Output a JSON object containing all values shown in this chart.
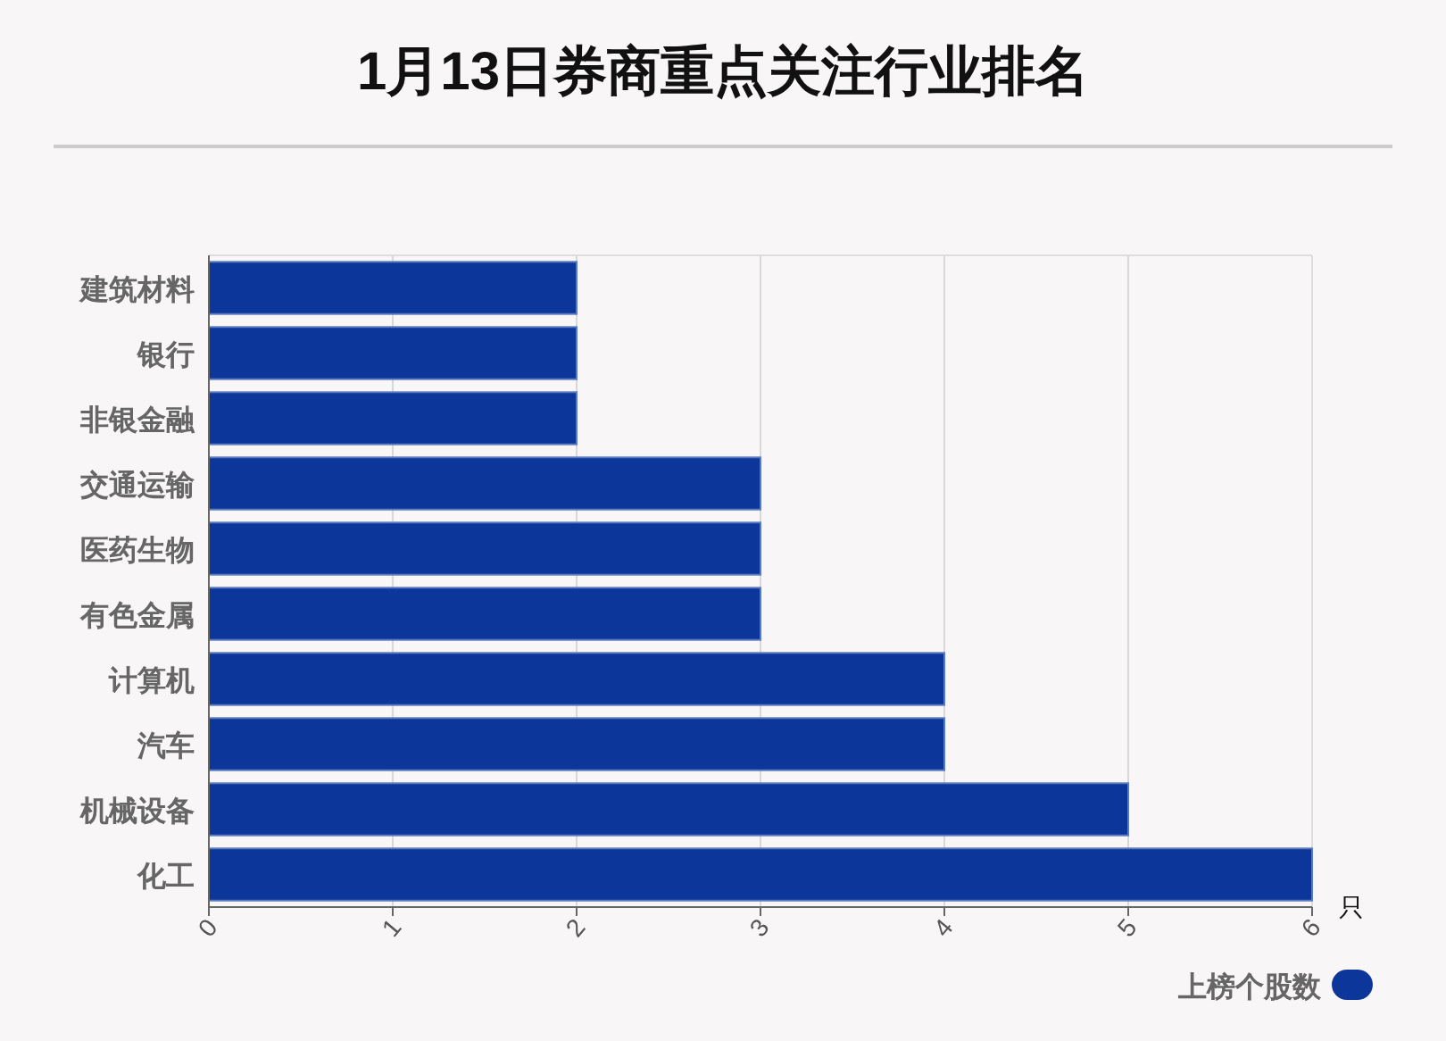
{
  "chart_data": {
    "type": "bar",
    "orientation": "horizontal",
    "title": "1月13日券商重点关注行业排名",
    "xlabel": "只",
    "categories": [
      "建筑材料",
      "银行",
      "非银金融",
      "交通运输",
      "医药生物",
      "有色金属",
      "计算机",
      "汽车",
      "机械设备",
      "化工"
    ],
    "series": [
      {
        "name": "上榜个股数",
        "color": "#0d369b",
        "values": [
          2,
          2,
          2,
          3,
          3,
          3,
          4,
          4,
          5,
          6
        ]
      }
    ],
    "xlim": [
      0,
      6
    ],
    "xticks": [
      0,
      1,
      2,
      3,
      4,
      5,
      6
    ],
    "grid": "x",
    "legend": "bottom right"
  }
}
